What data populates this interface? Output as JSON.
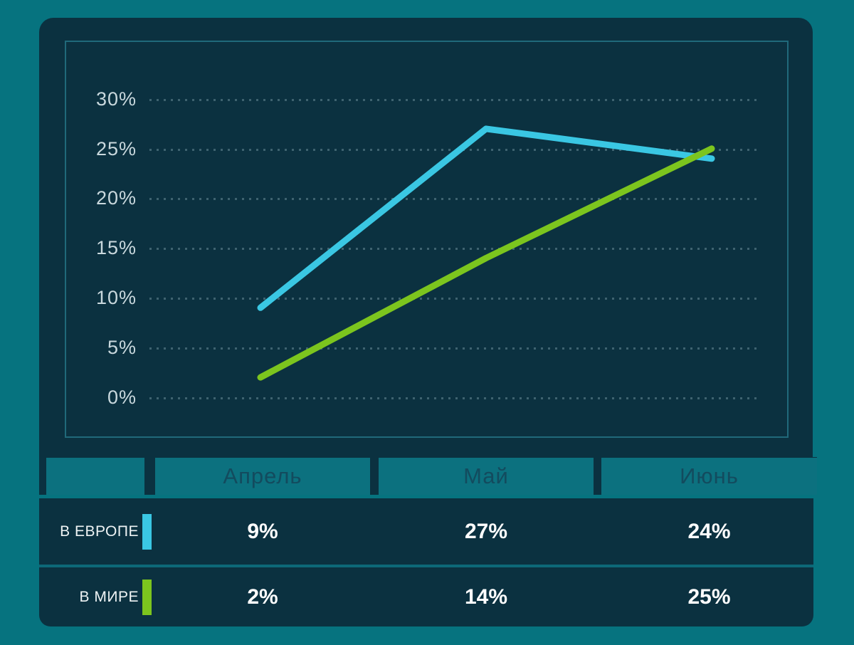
{
  "chart_data": {
    "type": "line",
    "categories": [
      "Апрель",
      "Май",
      "Июнь"
    ],
    "series": [
      {
        "name": "В ЕВРОПЕ",
        "color": "#3AC7E3",
        "values": [
          9,
          27,
          24
        ]
      },
      {
        "name": "В МИРЕ",
        "color": "#7CC51E",
        "values": [
          2,
          14,
          25
        ]
      }
    ],
    "title": "",
    "xlabel": "",
    "ylabel": "",
    "ylim": [
      0,
      30
    ],
    "ytick_step": 5,
    "ytick_labels": [
      "30%",
      "25%",
      "20%",
      "15%",
      "10%",
      "5%",
      "0%"
    ],
    "grid": "dotted-horizontal",
    "legend_position": "table-below-chart"
  },
  "table": {
    "rows": [
      {
        "label": "В ЕВРОПЕ",
        "swatch_color": "#3AC7E3",
        "values": [
          "9%",
          "27%",
          "24%"
        ]
      },
      {
        "label": "В МИРЕ",
        "swatch_color": "#7CC51E",
        "values": [
          "2%",
          "14%",
          "25%"
        ]
      }
    ]
  },
  "colors": {
    "background": "#06737F",
    "panel": "#0B3140",
    "frame_border": "#20697A",
    "month_box": "#0C717F",
    "month_text": "#134B5E",
    "tick_text": "#C9D8DD",
    "value_text": "#FFFFFF",
    "europe_line": "#3AC7E3",
    "world_line": "#7CC51E"
  }
}
